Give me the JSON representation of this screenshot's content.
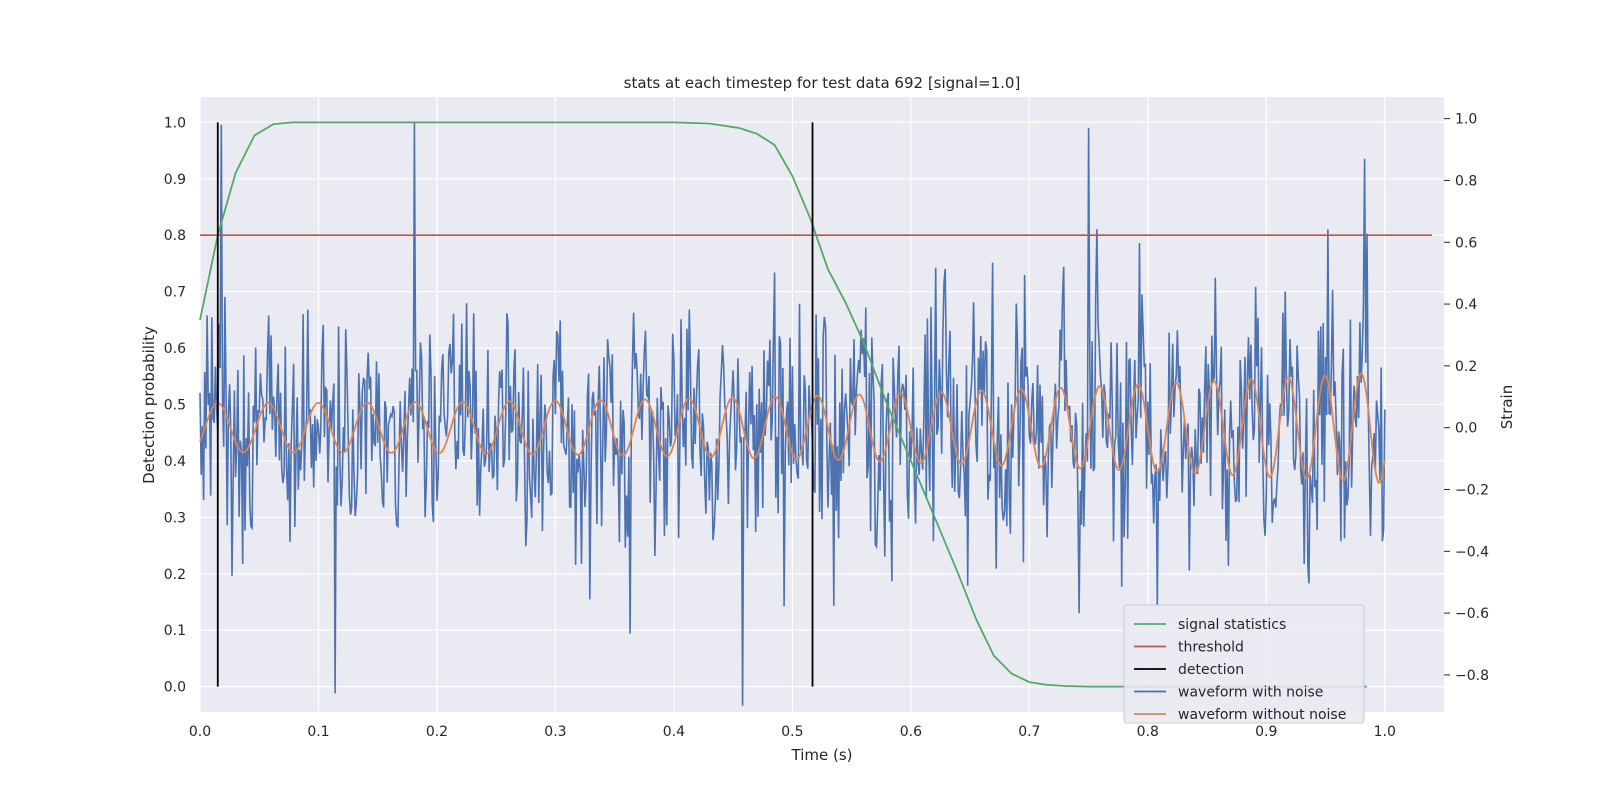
{
  "chart_data": {
    "type": "line",
    "title": "stats at each timestep for test data 692 [signal=1.0]",
    "xlabel": "Time (s)",
    "ylabel_left": "Detection probability",
    "ylabel_right": "Strain",
    "xlim": [
      0.0,
      1.05
    ],
    "ylim_left": [
      -0.045,
      1.045
    ],
    "ylim_right": [
      -0.92,
      1.07
    ],
    "x_ticks": [
      0.0,
      0.1,
      0.2,
      0.3,
      0.4,
      0.5,
      0.6,
      0.7,
      0.8,
      0.9,
      1.0
    ],
    "x_tick_labels": [
      "0.0",
      "0.1",
      "0.2",
      "0.3",
      "0.4",
      "0.5",
      "0.6",
      "0.7",
      "0.8",
      "0.9",
      "1.0"
    ],
    "y_left_ticks": [
      0.0,
      0.1,
      0.2,
      0.3,
      0.4,
      0.5,
      0.6,
      0.7,
      0.8,
      0.9,
      1.0
    ],
    "y_left_tick_labels": [
      "0.0",
      "0.1",
      "0.2",
      "0.3",
      "0.4",
      "0.5",
      "0.6",
      "0.7",
      "0.8",
      "0.9",
      "1.0"
    ],
    "y_right_ticks": [
      -0.8,
      -0.6,
      -0.4,
      -0.2,
      0.0,
      0.2,
      0.4,
      0.6,
      0.8,
      1.0
    ],
    "y_right_tick_labels": [
      "−0.8",
      "−0.6",
      "−0.4",
      "−0.2",
      "0.0",
      "0.2",
      "0.4",
      "0.6",
      "0.8",
      "1.0"
    ],
    "grid": true,
    "legend_position": "lower-right",
    "colors": {
      "signal_statistics": "#55a868",
      "threshold": "#c44e52",
      "detection": "#000000",
      "waveform_with_noise": "#4c72b0",
      "waveform_without_noise": "#dd8452",
      "background": "#eaeaf2",
      "grid": "#ffffff"
    },
    "series": [
      {
        "name": "signal statistics",
        "axis": "left",
        "x": [
          0.0,
          0.015,
          0.03,
          0.046,
          0.062,
          0.078,
          0.1,
          0.2,
          0.3,
          0.4,
          0.43,
          0.455,
          0.47,
          0.485,
          0.5,
          0.515,
          0.53,
          0.545,
          0.56,
          0.58,
          0.6,
          0.62,
          0.64,
          0.655,
          0.67,
          0.685,
          0.7,
          0.715,
          0.73,
          0.75,
          0.8,
          0.9,
          0.985
        ],
        "y": [
          0.65,
          0.8,
          0.91,
          0.977,
          0.997,
          1.0,
          1.0,
          1.0,
          1.0,
          1.0,
          0.998,
          0.99,
          0.98,
          0.96,
          0.905,
          0.83,
          0.74,
          0.68,
          0.61,
          0.5,
          0.4,
          0.3,
          0.2,
          0.12,
          0.055,
          0.023,
          0.008,
          0.003,
          0.001,
          0.0,
          0.0,
          0.0,
          0.0
        ]
      },
      {
        "name": "threshold",
        "axis": "left",
        "x": [
          0.0,
          1.04
        ],
        "y": [
          0.8,
          0.8
        ]
      },
      {
        "name": "detection",
        "axis": "left",
        "x": [
          0.015,
          0.517
        ],
        "y_range": [
          0.0,
          1.0
        ]
      },
      {
        "name": "waveform with noise",
        "axis": "right",
        "x_range": [
          0.0,
          1.0
        ],
        "description_values": "noisy strain about 0 with amplitude ~±0.4, extremes near 1.0 and -0.9",
        "peaks": [
          [
            0.018,
            0.98
          ],
          [
            0.181,
            0.99
          ],
          [
            0.114,
            -0.86
          ],
          [
            0.458,
            -0.9
          ],
          [
            0.75,
            0.97
          ],
          [
            0.983,
            0.87
          ]
        ]
      },
      {
        "name": "waveform without noise",
        "axis": "right",
        "x_range": [
          0.0,
          1.0
        ],
        "amplitude_start": 0.08,
        "amplitude_end": 0.18,
        "frequency_start_hz": 23,
        "frequency_end_hz": 33
      }
    ]
  }
}
